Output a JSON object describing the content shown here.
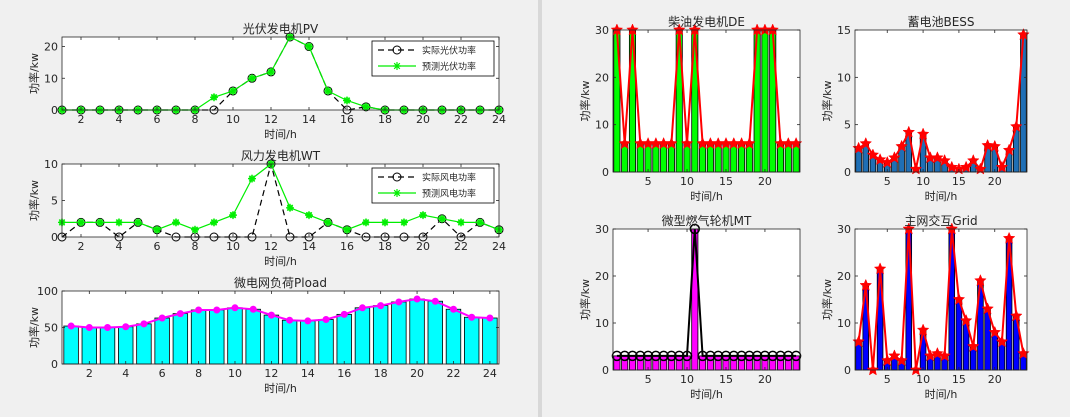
{
  "charts": [
    {
      "type": "line",
      "title": "光伏发电机PV",
      "xlabel": "时间/h",
      "ylabel": "功率/kw",
      "xlim": [
        1,
        24
      ],
      "ylim": [
        0,
        23
      ],
      "xticks": [
        2,
        4,
        6,
        8,
        10,
        12,
        14,
        16,
        18,
        20,
        22,
        24
      ],
      "yticks": [
        0,
        10,
        20
      ],
      "legend": {
        "placement": "top-right"
      },
      "x": [
        1,
        2,
        3,
        4,
        5,
        6,
        7,
        8,
        9,
        10,
        11,
        12,
        13,
        14,
        15,
        16,
        17,
        18,
        19,
        20,
        21,
        22,
        23,
        24
      ],
      "series": [
        {
          "name": "实际光伏功率",
          "style": "dashed-circle",
          "color": "#000000",
          "values": [
            0,
            0,
            0,
            0,
            0,
            0,
            0,
            0,
            0,
            6,
            10,
            12,
            23,
            20,
            6,
            0,
            1,
            0,
            0,
            0,
            0,
            0,
            0,
            0
          ]
        },
        {
          "name": "预测光伏功率",
          "style": "solid-star",
          "color": "#00ee00",
          "values": [
            0,
            0,
            0,
            0,
            0,
            0,
            0,
            0,
            4,
            6,
            10,
            12,
            23,
            20,
            6,
            3,
            1,
            0,
            0,
            0,
            0,
            0,
            0,
            0
          ]
        }
      ]
    },
    {
      "type": "line",
      "title": "风力发电机WT",
      "xlabel": "时间/h",
      "ylabel": "功率/kw",
      "xlim": [
        1,
        24
      ],
      "ylim": [
        0,
        10
      ],
      "xticks": [
        2,
        4,
        6,
        8,
        10,
        12,
        14,
        16,
        18,
        20,
        22,
        24
      ],
      "yticks": [
        0,
        5,
        10
      ],
      "legend": {
        "placement": "top-right"
      },
      "x": [
        1,
        2,
        3,
        4,
        5,
        6,
        7,
        8,
        9,
        10,
        11,
        12,
        13,
        14,
        15,
        16,
        17,
        18,
        19,
        20,
        21,
        22,
        23,
        24
      ],
      "series": [
        {
          "name": "实际风电功率",
          "style": "dashed-circle",
          "color": "#000000",
          "values": [
            0,
            2,
            2,
            0,
            2,
            1,
            0,
            0,
            0,
            0,
            0,
            10,
            0,
            0,
            2,
            1,
            0,
            0,
            0,
            0,
            2.5,
            0,
            2,
            1
          ]
        },
        {
          "name": "预测风电功率",
          "style": "solid-star",
          "color": "#00ee00",
          "values": [
            2,
            2,
            2,
            2,
            2,
            1,
            2,
            1,
            2,
            3,
            8,
            10,
            4,
            3,
            2,
            1,
            2,
            2,
            2,
            3,
            2.5,
            2,
            2,
            1
          ]
        }
      ]
    },
    {
      "type": "bar",
      "title": "微电网负荷Pload",
      "xlabel": "时间/h",
      "ylabel": "功率/kw",
      "xlim": [
        0.5,
        24.5
      ],
      "ylim": [
        0,
        100
      ],
      "xticks": [
        2,
        4,
        6,
        8,
        10,
        12,
        14,
        16,
        18,
        20,
        22,
        24
      ],
      "yticks": [
        0,
        50,
        100
      ],
      "bar_color": "#00ffff",
      "line_color": "#ff00ff",
      "x": [
        1,
        2,
        3,
        4,
        5,
        6,
        7,
        8,
        9,
        10,
        11,
        12,
        13,
        14,
        15,
        16,
        17,
        18,
        19,
        20,
        21,
        22,
        23,
        24
      ],
      "values": [
        52,
        50,
        50,
        51,
        55,
        63,
        69,
        74,
        74,
        77,
        75,
        67,
        60,
        59,
        61,
        68,
        77,
        80,
        85,
        89,
        86,
        75,
        64,
        63
      ]
    },
    {
      "type": "bar",
      "title": "柴油发电机DE",
      "xlabel": "时间/h",
      "ylabel": "功率/kw",
      "xlim": [
        0.5,
        24.5
      ],
      "ylim": [
        0,
        30
      ],
      "xticks": [
        5,
        10,
        15,
        20
      ],
      "yticks": [
        0,
        10,
        20,
        30
      ],
      "bar_color": "#00ff00",
      "line_color": "#ff0000",
      "marker": "star",
      "x": [
        1,
        2,
        3,
        4,
        5,
        6,
        7,
        8,
        9,
        10,
        11,
        12,
        13,
        14,
        15,
        16,
        17,
        18,
        19,
        20,
        21,
        22,
        23,
        24
      ],
      "values": [
        30,
        6,
        30,
        6,
        6,
        6,
        6,
        6,
        30,
        6,
        30,
        6,
        6,
        6,
        6,
        6,
        6,
        6,
        30,
        30,
        30,
        6,
        6,
        6
      ]
    },
    {
      "type": "bar",
      "title": "蓄电池BESS",
      "xlabel": "时间/h",
      "ylabel": "功率/kw",
      "xlim": [
        0.5,
        24.5
      ],
      "ylim": [
        0,
        15
      ],
      "xticks": [
        5,
        10,
        15,
        20
      ],
      "yticks": [
        0,
        5,
        10,
        15
      ],
      "bar_color": "#1f6fb5",
      "line_color": "#ff0000",
      "marker": "star",
      "x": [
        1,
        2,
        3,
        4,
        5,
        6,
        7,
        8,
        9,
        10,
        11,
        12,
        13,
        14,
        15,
        16,
        17,
        18,
        19,
        20,
        21,
        22,
        23,
        24
      ],
      "values": [
        2.5,
        3,
        1.8,
        1.3,
        1.0,
        1.5,
        2.7,
        4.2,
        0.3,
        4.0,
        1.5,
        1.5,
        1.2,
        0.5,
        0.3,
        0.5,
        1.2,
        0.3,
        2.8,
        2.7,
        0.5,
        2.3,
        4.8,
        14.5
      ]
    },
    {
      "type": "bar",
      "title": "微型燃气轮机MT",
      "xlabel": "时间/h",
      "ylabel": "功率/kw",
      "xlim": [
        0.5,
        24.5
      ],
      "ylim": [
        0,
        30
      ],
      "xticks": [
        5,
        10,
        15,
        20
      ],
      "yticks": [
        0,
        10,
        20,
        30
      ],
      "bar_color": "#ff00ff",
      "line_color": "#000000",
      "marker": "circle",
      "x": [
        1,
        2,
        3,
        4,
        5,
        6,
        7,
        8,
        9,
        10,
        11,
        12,
        13,
        14,
        15,
        16,
        17,
        18,
        19,
        20,
        21,
        22,
        23,
        24
      ],
      "values": [
        3,
        3,
        3,
        3,
        3,
        3,
        3,
        3,
        3,
        3,
        30,
        3,
        3,
        3,
        3,
        3,
        3,
        3,
        3,
        3,
        3,
        3,
        3,
        3
      ]
    },
    {
      "type": "bar",
      "title": "主网交互Grid",
      "xlabel": "时间/h",
      "ylabel": "功率/kw",
      "xlim": [
        0.5,
        24.5
      ],
      "ylim": [
        0,
        30
      ],
      "xticks": [
        5,
        10,
        15,
        20
      ],
      "yticks": [
        0,
        10,
        20,
        30
      ],
      "bar_color": "#0000ff",
      "line_color": "#ff0000",
      "marker": "star",
      "x": [
        1,
        2,
        3,
        4,
        5,
        6,
        7,
        8,
        9,
        10,
        11,
        12,
        13,
        14,
        15,
        16,
        17,
        18,
        19,
        20,
        21,
        22,
        23,
        24
      ],
      "values": [
        6,
        18,
        0,
        21.5,
        2,
        3,
        2,
        30,
        0,
        8.5,
        3,
        3.5,
        3,
        30,
        15,
        10.5,
        5,
        19,
        13,
        8,
        6,
        28,
        11.5,
        3.5
      ]
    }
  ]
}
